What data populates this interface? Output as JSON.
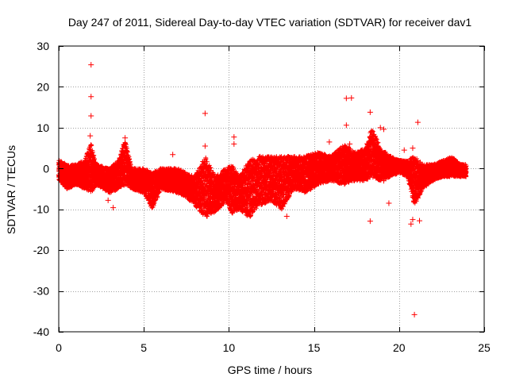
{
  "chart_data": {
    "type": "scatter",
    "title": "Day 247 of 2011, Sidereal Day-to-day VTEC variation (SDTVAR) for receiver dav1",
    "xlabel": "GPS time / hours",
    "ylabel": "SDTVAR / TECUs",
    "xlim": [
      0,
      25
    ],
    "ylim": [
      -40,
      30
    ],
    "xticks": [
      0,
      5,
      10,
      15,
      20,
      25
    ],
    "yticks": [
      -40,
      -30,
      -20,
      -10,
      0,
      10,
      20,
      30
    ],
    "xtick_labels": [
      "0",
      "5",
      "10",
      "15",
      "20",
      "25"
    ],
    "ytick_labels": [
      "-40",
      "-30",
      "-20",
      "-10",
      "0",
      "10",
      "20",
      "30"
    ],
    "grid": true,
    "marker": "+",
    "colors": {
      "series": "#ff0000",
      "grid": "#a0a0a0",
      "axis": "#000000"
    },
    "envelope": [
      {
        "x": 0.0,
        "low": -3,
        "high": 2
      },
      {
        "x": 0.5,
        "low": -5,
        "high": 1
      },
      {
        "x": 1.0,
        "low": -4,
        "high": 1
      },
      {
        "x": 1.5,
        "low": -5,
        "high": 2
      },
      {
        "x": 1.9,
        "low": -6,
        "high": 6
      },
      {
        "x": 2.2,
        "low": -4,
        "high": 1
      },
      {
        "x": 3.0,
        "low": -6,
        "high": 0
      },
      {
        "x": 3.5,
        "low": -5,
        "high": 2
      },
      {
        "x": 3.9,
        "low": -4,
        "high": 7
      },
      {
        "x": 4.3,
        "low": -5,
        "high": 0
      },
      {
        "x": 5.0,
        "low": -6,
        "high": 0
      },
      {
        "x": 5.5,
        "low": -10,
        "high": -1
      },
      {
        "x": 6.0,
        "low": -5,
        "high": 0
      },
      {
        "x": 7.0,
        "low": -6,
        "high": 0
      },
      {
        "x": 7.5,
        "low": -7,
        "high": -1
      },
      {
        "x": 8.0,
        "low": -9,
        "high": -2
      },
      {
        "x": 8.6,
        "low": -12,
        "high": 3
      },
      {
        "x": 9.2,
        "low": -11,
        "high": -2
      },
      {
        "x": 9.8,
        "low": -8,
        "high": 0
      },
      {
        "x": 10.2,
        "low": -11,
        "high": 1
      },
      {
        "x": 10.6,
        "low": -10,
        "high": -2
      },
      {
        "x": 11.2,
        "low": -12,
        "high": 2
      },
      {
        "x": 11.8,
        "low": -9,
        "high": 3
      },
      {
        "x": 12.5,
        "low": -8,
        "high": 3
      },
      {
        "x": 13.1,
        "low": -10,
        "high": 3
      },
      {
        "x": 13.8,
        "low": -5,
        "high": 3
      },
      {
        "x": 14.5,
        "low": -6,
        "high": 3
      },
      {
        "x": 15.2,
        "low": -4,
        "high": 4
      },
      {
        "x": 16.0,
        "low": -3,
        "high": 3
      },
      {
        "x": 16.8,
        "low": -4,
        "high": 6
      },
      {
        "x": 17.4,
        "low": -3,
        "high": 4
      },
      {
        "x": 18.0,
        "low": -3,
        "high": 5
      },
      {
        "x": 18.4,
        "low": -2,
        "high": 10
      },
      {
        "x": 18.9,
        "low": -3,
        "high": 5
      },
      {
        "x": 19.5,
        "low": -2,
        "high": 3
      },
      {
        "x": 20.0,
        "low": -1,
        "high": 2
      },
      {
        "x": 20.5,
        "low": -2,
        "high": 2
      },
      {
        "x": 20.9,
        "low": -9,
        "high": 3
      },
      {
        "x": 21.4,
        "low": -5,
        "high": 1
      },
      {
        "x": 22.0,
        "low": -3,
        "high": 1
      },
      {
        "x": 22.6,
        "low": -2,
        "high": 2
      },
      {
        "x": 23.1,
        "low": -2,
        "high": 3
      },
      {
        "x": 23.6,
        "low": -2,
        "high": 1
      },
      {
        "x": 23.95,
        "low": -2,
        "high": 1
      }
    ],
    "outliers": [
      {
        "x": 1.9,
        "y": 25.4
      },
      {
        "x": 1.9,
        "y": 17.6
      },
      {
        "x": 1.9,
        "y": 12.9
      },
      {
        "x": 1.85,
        "y": 8.0
      },
      {
        "x": 2.9,
        "y": -7.8
      },
      {
        "x": 3.2,
        "y": -9.6
      },
      {
        "x": 3.9,
        "y": 7.5
      },
      {
        "x": 6.7,
        "y": 3.4
      },
      {
        "x": 8.6,
        "y": 13.5
      },
      {
        "x": 8.6,
        "y": 5.5
      },
      {
        "x": 10.3,
        "y": 7.7
      },
      {
        "x": 10.3,
        "y": 6.0
      },
      {
        "x": 13.4,
        "y": -11.7
      },
      {
        "x": 15.9,
        "y": 6.5
      },
      {
        "x": 16.9,
        "y": 17.2
      },
      {
        "x": 17.2,
        "y": 17.3
      },
      {
        "x": 16.9,
        "y": 10.6
      },
      {
        "x": 17.1,
        "y": 6.0
      },
      {
        "x": 18.3,
        "y": 13.8
      },
      {
        "x": 18.3,
        "y": -12.9
      },
      {
        "x": 18.9,
        "y": 10.0
      },
      {
        "x": 19.1,
        "y": 9.6
      },
      {
        "x": 19.1,
        "y": -3.0
      },
      {
        "x": 19.4,
        "y": -8.5
      },
      {
        "x": 20.3,
        "y": 4.5
      },
      {
        "x": 20.8,
        "y": 5.0
      },
      {
        "x": 21.1,
        "y": 11.3
      },
      {
        "x": 20.8,
        "y": -12.5
      },
      {
        "x": 20.7,
        "y": -13.6
      },
      {
        "x": 21.2,
        "y": -12.8
      },
      {
        "x": 20.9,
        "y": -35.8
      }
    ]
  }
}
